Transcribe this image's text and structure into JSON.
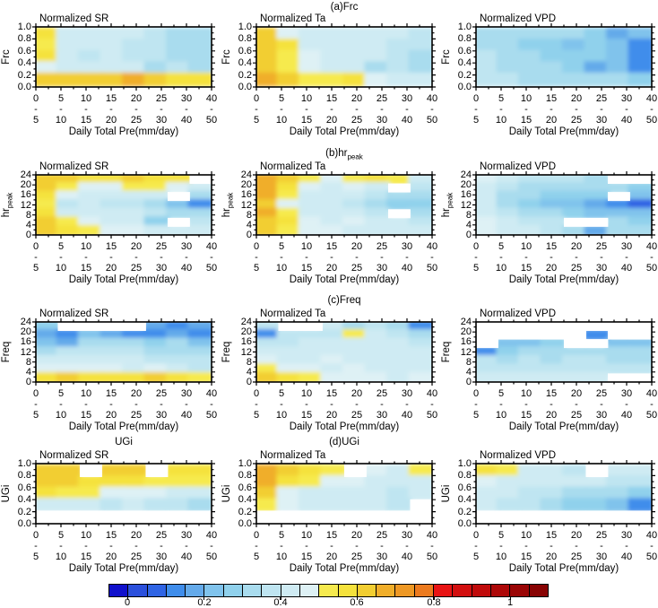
{
  "figure": {
    "background": "#ffffff",
    "xlabel": "Daily Total Pre(mm/day)",
    "x_tick_upper": [
      "0",
      "5",
      "10",
      "15",
      "20",
      "25",
      "30",
      "40"
    ],
    "x_tick_dash": "-",
    "x_tick_lower": [
      "5",
      "10",
      "15",
      "20",
      "25",
      "30",
      "40",
      "50"
    ],
    "rows": [
      {
        "id": "a",
        "section_title_main": "(a)Frc",
        "section_title_sub": "",
        "y_label_main": "Frc",
        "y_label_sub": "",
        "y_ticks": [
          "1.0",
          "0.8",
          "0.6",
          "0.4",
          "0.2",
          "0.0"
        ],
        "extra_left_title": ""
      },
      {
        "id": "b",
        "section_title_main": "(b)hr",
        "section_title_sub": "peak",
        "y_label_main": "hr",
        "y_label_sub": "peak",
        "y_ticks": [
          "24",
          "20",
          "16",
          "12",
          "8",
          "4",
          "0"
        ],
        "extra_left_title": ""
      },
      {
        "id": "c",
        "section_title_main": "(c)Freq",
        "section_title_sub": "",
        "y_label_main": "Freq",
        "y_label_sub": "",
        "y_ticks": [
          "24",
          "20",
          "16",
          "12",
          "8",
          "4",
          "0"
        ],
        "extra_left_title": ""
      },
      {
        "id": "d",
        "section_title_main": "(d)UGi",
        "section_title_sub": "",
        "y_label_main": "UGi",
        "y_label_sub": "",
        "y_ticks": [
          "1.0",
          "0.8",
          "0.6",
          "0.4",
          "0.2",
          "0.0"
        ],
        "extra_left_title": "UGi"
      }
    ],
    "colorbar": {
      "tick_labels": [
        "0",
        "0.2",
        "0.4",
        "0.6",
        "0.8",
        "1"
      ],
      "tick_boundary_indices": [
        1,
        5,
        9,
        13,
        17,
        21
      ],
      "colors": [
        "#1111cc",
        "#2b50dc",
        "#2f64e4",
        "#3f8deb",
        "#64aaea",
        "#80c3ec",
        "#90d1ec",
        "#a9dcee",
        "#bfe5f1",
        "#cfebf3",
        "#def1f5",
        "#f6ea4e",
        "#f5e23c",
        "#f2ce32",
        "#f0ae2a",
        "#ee9824",
        "#ec7a1e",
        "#e81414",
        "#d20f0f",
        "#c00b0b",
        "#ad0808",
        "#9a0505",
        "#880303"
      ]
    }
  },
  "chart_data": [
    {
      "type": "heatmap",
      "section": "(a)Frc",
      "title": "Normalized SR",
      "xlabel": "Daily Total Pre(mm/day)",
      "x_bins": [
        "0-5",
        "5-10",
        "10-15",
        "15-20",
        "20-25",
        "25-30",
        "30-40",
        "40-50"
      ],
      "ylabel": "Frc",
      "ylim": [
        0,
        1
      ],
      "y_centers": [
        0.9,
        0.7,
        0.5,
        0.3,
        0.1
      ],
      "note": "normalized value 0-1 read from colorbar; null = white (no data)",
      "values": [
        [
          0.55,
          0.4,
          0.4,
          0.4,
          0.4,
          0.35,
          0.3,
          0.3
        ],
        [
          0.5,
          0.4,
          0.4,
          0.4,
          0.35,
          0.35,
          0.3,
          0.3
        ],
        [
          0.55,
          0.4,
          0.35,
          0.4,
          0.35,
          0.35,
          0.3,
          0.3
        ],
        [
          0.45,
          0.4,
          0.4,
          0.4,
          0.4,
          0.3,
          0.35,
          0.3
        ],
        [
          0.6,
          0.6,
          0.6,
          0.6,
          0.65,
          0.6,
          0.55,
          0.55
        ]
      ]
    },
    {
      "type": "heatmap",
      "section": "(a)Frc",
      "title": "Normalized Ta",
      "xlabel": "Daily Total Pre(mm/day)",
      "x_bins": [
        "0-5",
        "5-10",
        "10-15",
        "15-20",
        "20-25",
        "25-30",
        "30-40",
        "40-50"
      ],
      "ylabel": "Frc",
      "ylim": [
        0,
        1
      ],
      "y_centers": [
        0.9,
        0.7,
        0.5,
        0.3,
        0.1
      ],
      "values": [
        [
          0.6,
          0.45,
          0.4,
          0.4,
          0.4,
          0.4,
          0.4,
          0.35
        ],
        [
          0.6,
          0.55,
          0.4,
          0.4,
          0.4,
          0.4,
          0.35,
          0.35
        ],
        [
          0.6,
          0.5,
          0.45,
          0.4,
          0.4,
          0.4,
          0.35,
          0.3
        ],
        [
          0.6,
          0.5,
          0.45,
          0.4,
          0.4,
          0.3,
          0.35,
          0.3
        ],
        [
          0.65,
          0.6,
          0.5,
          0.5,
          0.55,
          0.45,
          0.4,
          0.4
        ]
      ]
    },
    {
      "type": "heatmap",
      "section": "(a)Frc",
      "title": "Normalized VPD",
      "xlabel": "Daily Total Pre(mm/day)",
      "x_bins": [
        "0-5",
        "5-10",
        "10-15",
        "15-20",
        "20-25",
        "25-30",
        "30-40",
        "40-50"
      ],
      "ylabel": "Frc",
      "ylim": [
        0,
        1
      ],
      "y_centers": [
        0.9,
        0.7,
        0.5,
        0.3,
        0.1
      ],
      "values": [
        [
          0.3,
          0.3,
          0.3,
          0.3,
          0.3,
          0.25,
          0.15,
          0.2
        ],
        [
          0.3,
          0.3,
          0.25,
          0.25,
          0.2,
          0.25,
          0.2,
          0.1
        ],
        [
          0.35,
          0.3,
          0.3,
          0.25,
          0.25,
          0.25,
          0.2,
          0.1
        ],
        [
          0.35,
          0.3,
          0.3,
          0.3,
          0.25,
          0.15,
          0.2,
          0.1
        ],
        [
          0.35,
          0.35,
          0.3,
          0.3,
          0.3,
          0.3,
          0.3,
          0.25
        ]
      ]
    },
    {
      "type": "heatmap",
      "section": "(b)hr_peak",
      "title": "Normalized SR",
      "xlabel": "Daily Total Pre(mm/day)",
      "x_bins": [
        "0-5",
        "5-10",
        "10-15",
        "15-20",
        "20-25",
        "25-30",
        "30-40",
        "40-50"
      ],
      "ylabel": "hr_peak",
      "ylim": [
        0,
        24
      ],
      "y_centers": [
        21,
        18,
        15,
        12,
        9,
        6,
        3
      ],
      "values": [
        [
          0.6,
          0.6,
          0.55,
          0.55,
          0.6,
          0.55,
          0.55,
          null
        ],
        [
          0.6,
          0.5,
          0.45,
          0.45,
          0.5,
          0.5,
          0.45,
          0.4
        ],
        [
          0.55,
          0.45,
          0.4,
          0.4,
          0.4,
          0.4,
          null,
          0.3
        ],
        [
          0.5,
          0.35,
          0.4,
          0.35,
          0.35,
          0.3,
          0.2,
          0.1
        ],
        [
          0.55,
          0.4,
          0.4,
          0.4,
          0.4,
          0.35,
          0.3,
          0.3
        ],
        [
          0.6,
          0.5,
          0.45,
          0.4,
          0.4,
          0.25,
          null,
          0.35
        ],
        [
          0.6,
          0.55,
          0.5,
          0.45,
          0.45,
          0.4,
          0.4,
          0.4
        ]
      ]
    },
    {
      "type": "heatmap",
      "section": "(b)hr_peak",
      "title": "Normalized Ta",
      "xlabel": "Daily Total Pre(mm/day)",
      "x_bins": [
        "0-5",
        "5-10",
        "10-15",
        "15-20",
        "20-25",
        "25-30",
        "30-40",
        "40-50"
      ],
      "ylabel": "hr_peak",
      "ylim": [
        0,
        24
      ],
      "y_centers": [
        21,
        18,
        15,
        12,
        9,
        6,
        3
      ],
      "values": [
        [
          0.65,
          0.6,
          0.5,
          0.45,
          0.5,
          0.55,
          0.5,
          0.4
        ],
        [
          0.65,
          0.55,
          0.45,
          0.4,
          0.45,
          0.4,
          null,
          0.35
        ],
        [
          0.65,
          0.5,
          0.4,
          0.4,
          0.4,
          0.35,
          0.3,
          0.3
        ],
        [
          0.6,
          0.45,
          0.4,
          0.4,
          0.35,
          0.3,
          0.25,
          0.25
        ],
        [
          0.65,
          0.5,
          0.4,
          0.4,
          0.4,
          0.35,
          null,
          0.3
        ],
        [
          0.6,
          0.55,
          0.45,
          0.4,
          0.45,
          0.4,
          0.4,
          0.35
        ],
        [
          0.6,
          0.5,
          0.45,
          0.45,
          0.4,
          0.4,
          0.4,
          0.4
        ]
      ]
    },
    {
      "type": "heatmap",
      "section": "(b)hr_peak",
      "title": "Normalized VPD",
      "xlabel": "Daily Total Pre(mm/day)",
      "x_bins": [
        "0-5",
        "5-10",
        "10-15",
        "15-20",
        "20-25",
        "25-30",
        "30-40",
        "40-50"
      ],
      "ylabel": "hr_peak",
      "ylim": [
        0,
        24
      ],
      "y_centers": [
        21,
        18,
        15,
        12,
        9,
        6,
        3
      ],
      "values": [
        [
          0.45,
          0.4,
          0.35,
          0.35,
          0.35,
          0.3,
          null,
          null
        ],
        [
          0.4,
          0.35,
          0.3,
          0.3,
          0.3,
          0.3,
          0.3,
          0.25
        ],
        [
          0.4,
          0.3,
          0.3,
          0.25,
          0.25,
          0.25,
          null,
          0.2
        ],
        [
          0.4,
          0.3,
          0.25,
          0.2,
          0.2,
          0.15,
          0.1,
          0.05
        ],
        [
          0.4,
          0.35,
          0.3,
          0.3,
          0.25,
          0.2,
          0.2,
          0.2
        ],
        [
          0.45,
          0.4,
          0.35,
          0.35,
          null,
          null,
          0.3,
          0.25
        ],
        [
          0.45,
          0.4,
          0.4,
          0.35,
          0.3,
          0.15,
          0.3,
          0.3
        ]
      ]
    },
    {
      "type": "heatmap",
      "section": "(c)Freq",
      "title": "Normalized SR",
      "xlabel": "Daily Total Pre(mm/day)",
      "x_bins": [
        "0-5",
        "5-10",
        "10-15",
        "15-20",
        "20-25",
        "25-30",
        "30-40",
        "40-50"
      ],
      "ylabel": "Freq",
      "ylim": [
        0,
        24
      ],
      "y_centers": [
        21,
        18,
        15,
        12,
        9,
        6,
        3
      ],
      "values": [
        [
          0.25,
          null,
          null,
          null,
          null,
          0.15,
          0.1,
          0.15
        ],
        [
          0.15,
          0.1,
          0.2,
          0.15,
          0.1,
          0.1,
          0.15,
          0.1
        ],
        [
          0.2,
          0.15,
          0.3,
          0.3,
          0.3,
          0.25,
          0.3,
          0.2
        ],
        [
          0.3,
          0.35,
          0.35,
          0.35,
          0.35,
          0.3,
          0.3,
          0.3
        ],
        [
          0.4,
          0.4,
          0.4,
          0.4,
          0.4,
          0.35,
          0.35,
          0.35
        ],
        [
          0.45,
          0.45,
          0.45,
          0.45,
          0.4,
          0.45,
          0.4,
          0.35
        ],
        [
          0.55,
          0.6,
          0.55,
          0.55,
          0.55,
          0.6,
          0.55,
          0.5
        ]
      ]
    },
    {
      "type": "heatmap",
      "section": "(c)Freq",
      "title": "Normalized Ta",
      "xlabel": "Daily Total Pre(mm/day)",
      "x_bins": [
        "0-5",
        "5-10",
        "10-15",
        "15-20",
        "20-25",
        "25-30",
        "30-40",
        "40-50"
      ],
      "ylabel": "Freq",
      "ylim": [
        0,
        24
      ],
      "y_centers": [
        21,
        18,
        15,
        12,
        9,
        6,
        3
      ],
      "values": [
        [
          0.35,
          null,
          null,
          0.4,
          0.3,
          0.35,
          0.3,
          0.1
        ],
        [
          0.1,
          0.35,
          0.35,
          0.35,
          0.5,
          0.4,
          0.35,
          0.3
        ],
        [
          0.35,
          0.35,
          0.4,
          0.4,
          0.4,
          0.4,
          0.4,
          0.35
        ],
        [
          0.4,
          0.4,
          0.4,
          0.4,
          0.4,
          0.4,
          0.4,
          0.4
        ],
        [
          0.45,
          0.4,
          0.4,
          0.45,
          0.4,
          0.4,
          0.4,
          0.4
        ],
        [
          0.5,
          0.45,
          0.45,
          0.4,
          0.45,
          0.4,
          0.4,
          0.4
        ],
        [
          0.6,
          0.55,
          0.5,
          0.45,
          0.45,
          0.45,
          0.4,
          0.45
        ]
      ]
    },
    {
      "type": "heatmap",
      "section": "(c)Freq",
      "title": "Normalized VPD",
      "xlabel": "Daily Total Pre(mm/day)",
      "x_bins": [
        "0-5",
        "5-10",
        "10-15",
        "15-20",
        "20-25",
        "25-30",
        "30-40",
        "40-50"
      ],
      "ylabel": "Freq",
      "ylim": [
        0,
        24
      ],
      "y_centers": [
        21,
        18,
        15,
        12,
        9,
        6,
        3
      ],
      "values": [
        [
          null,
          null,
          null,
          null,
          null,
          null,
          null,
          null
        ],
        [
          null,
          null,
          null,
          null,
          null,
          0.1,
          null,
          null
        ],
        [
          null,
          0.2,
          0.2,
          0.25,
          null,
          null,
          0.2,
          0.2
        ],
        [
          0.1,
          0.25,
          0.3,
          0.3,
          0.3,
          0.3,
          0.3,
          0.3
        ],
        [
          0.35,
          0.3,
          0.35,
          0.3,
          0.35,
          0.35,
          0.3,
          0.3
        ],
        [
          0.35,
          0.35,
          0.35,
          0.35,
          0.35,
          0.35,
          0.35,
          0.35
        ],
        [
          0.4,
          0.4,
          0.4,
          0.4,
          0.4,
          0.4,
          null,
          null
        ]
      ]
    },
    {
      "type": "heatmap",
      "section": "(d)UGi",
      "title": "Normalized SR",
      "xlabel": "Daily Total Pre(mm/day)",
      "x_bins": [
        "0-5",
        "5-10",
        "10-15",
        "15-20",
        "20-25",
        "25-30",
        "30-40",
        "40-50"
      ],
      "ylabel": "UGi",
      "ylim": [
        0,
        1
      ],
      "y_centers": [
        0.9,
        0.7,
        0.5,
        0.3,
        0.1
      ],
      "values": [
        [
          0.6,
          0.6,
          null,
          0.6,
          0.6,
          null,
          0.55,
          0.55
        ],
        [
          0.6,
          0.6,
          0.55,
          0.55,
          0.55,
          0.5,
          0.5,
          0.5
        ],
        [
          0.55,
          0.5,
          0.5,
          0.45,
          0.45,
          0.45,
          0.4,
          0.4
        ],
        [
          0.4,
          0.4,
          0.4,
          0.35,
          0.4,
          0.35,
          0.35,
          0.3
        ],
        [
          null,
          null,
          null,
          null,
          null,
          null,
          null,
          null
        ]
      ]
    },
    {
      "type": "heatmap",
      "section": "(d)UGi",
      "title": "Normalized Ta",
      "xlabel": "Daily Total Pre(mm/day)",
      "x_bins": [
        "0-5",
        "5-10",
        "10-15",
        "15-20",
        "20-25",
        "25-30",
        "30-40",
        "40-50"
      ],
      "ylabel": "UGi",
      "ylim": [
        0,
        1
      ],
      "y_centers": [
        0.9,
        0.7,
        0.5,
        0.3,
        0.1
      ],
      "values": [
        [
          0.65,
          0.6,
          0.55,
          0.5,
          null,
          0.45,
          0.4,
          0.5
        ],
        [
          0.65,
          0.55,
          0.5,
          0.45,
          0.45,
          0.4,
          0.4,
          0.4
        ],
        [
          0.6,
          0.45,
          0.4,
          0.4,
          0.4,
          0.4,
          0.35,
          0.4
        ],
        [
          0.5,
          0.45,
          0.4,
          0.4,
          0.4,
          0.4,
          0.35,
          null
        ],
        [
          null,
          null,
          null,
          null,
          null,
          null,
          null,
          null
        ]
      ]
    },
    {
      "type": "heatmap",
      "section": "(d)UGi",
      "title": "Normalized VPD",
      "xlabel": "Daily Total Pre(mm/day)",
      "x_bins": [
        "0-5",
        "5-10",
        "10-15",
        "15-20",
        "20-25",
        "25-30",
        "30-40",
        "40-50"
      ],
      "ylabel": "UGi",
      "ylim": [
        0,
        1
      ],
      "y_centers": [
        0.9,
        0.7,
        0.5,
        0.3,
        0.1
      ],
      "values": [
        [
          0.55,
          0.5,
          0.4,
          0.4,
          0.35,
          null,
          0.4,
          0.4
        ],
        [
          0.45,
          0.4,
          0.4,
          0.4,
          0.4,
          0.4,
          0.35,
          0.35
        ],
        [
          0.4,
          0.4,
          0.35,
          0.35,
          0.3,
          0.3,
          0.3,
          0.25
        ],
        [
          0.4,
          0.35,
          0.35,
          0.3,
          0.25,
          0.25,
          0.2,
          0.1
        ],
        [
          null,
          null,
          null,
          null,
          null,
          null,
          null,
          null
        ]
      ]
    }
  ]
}
